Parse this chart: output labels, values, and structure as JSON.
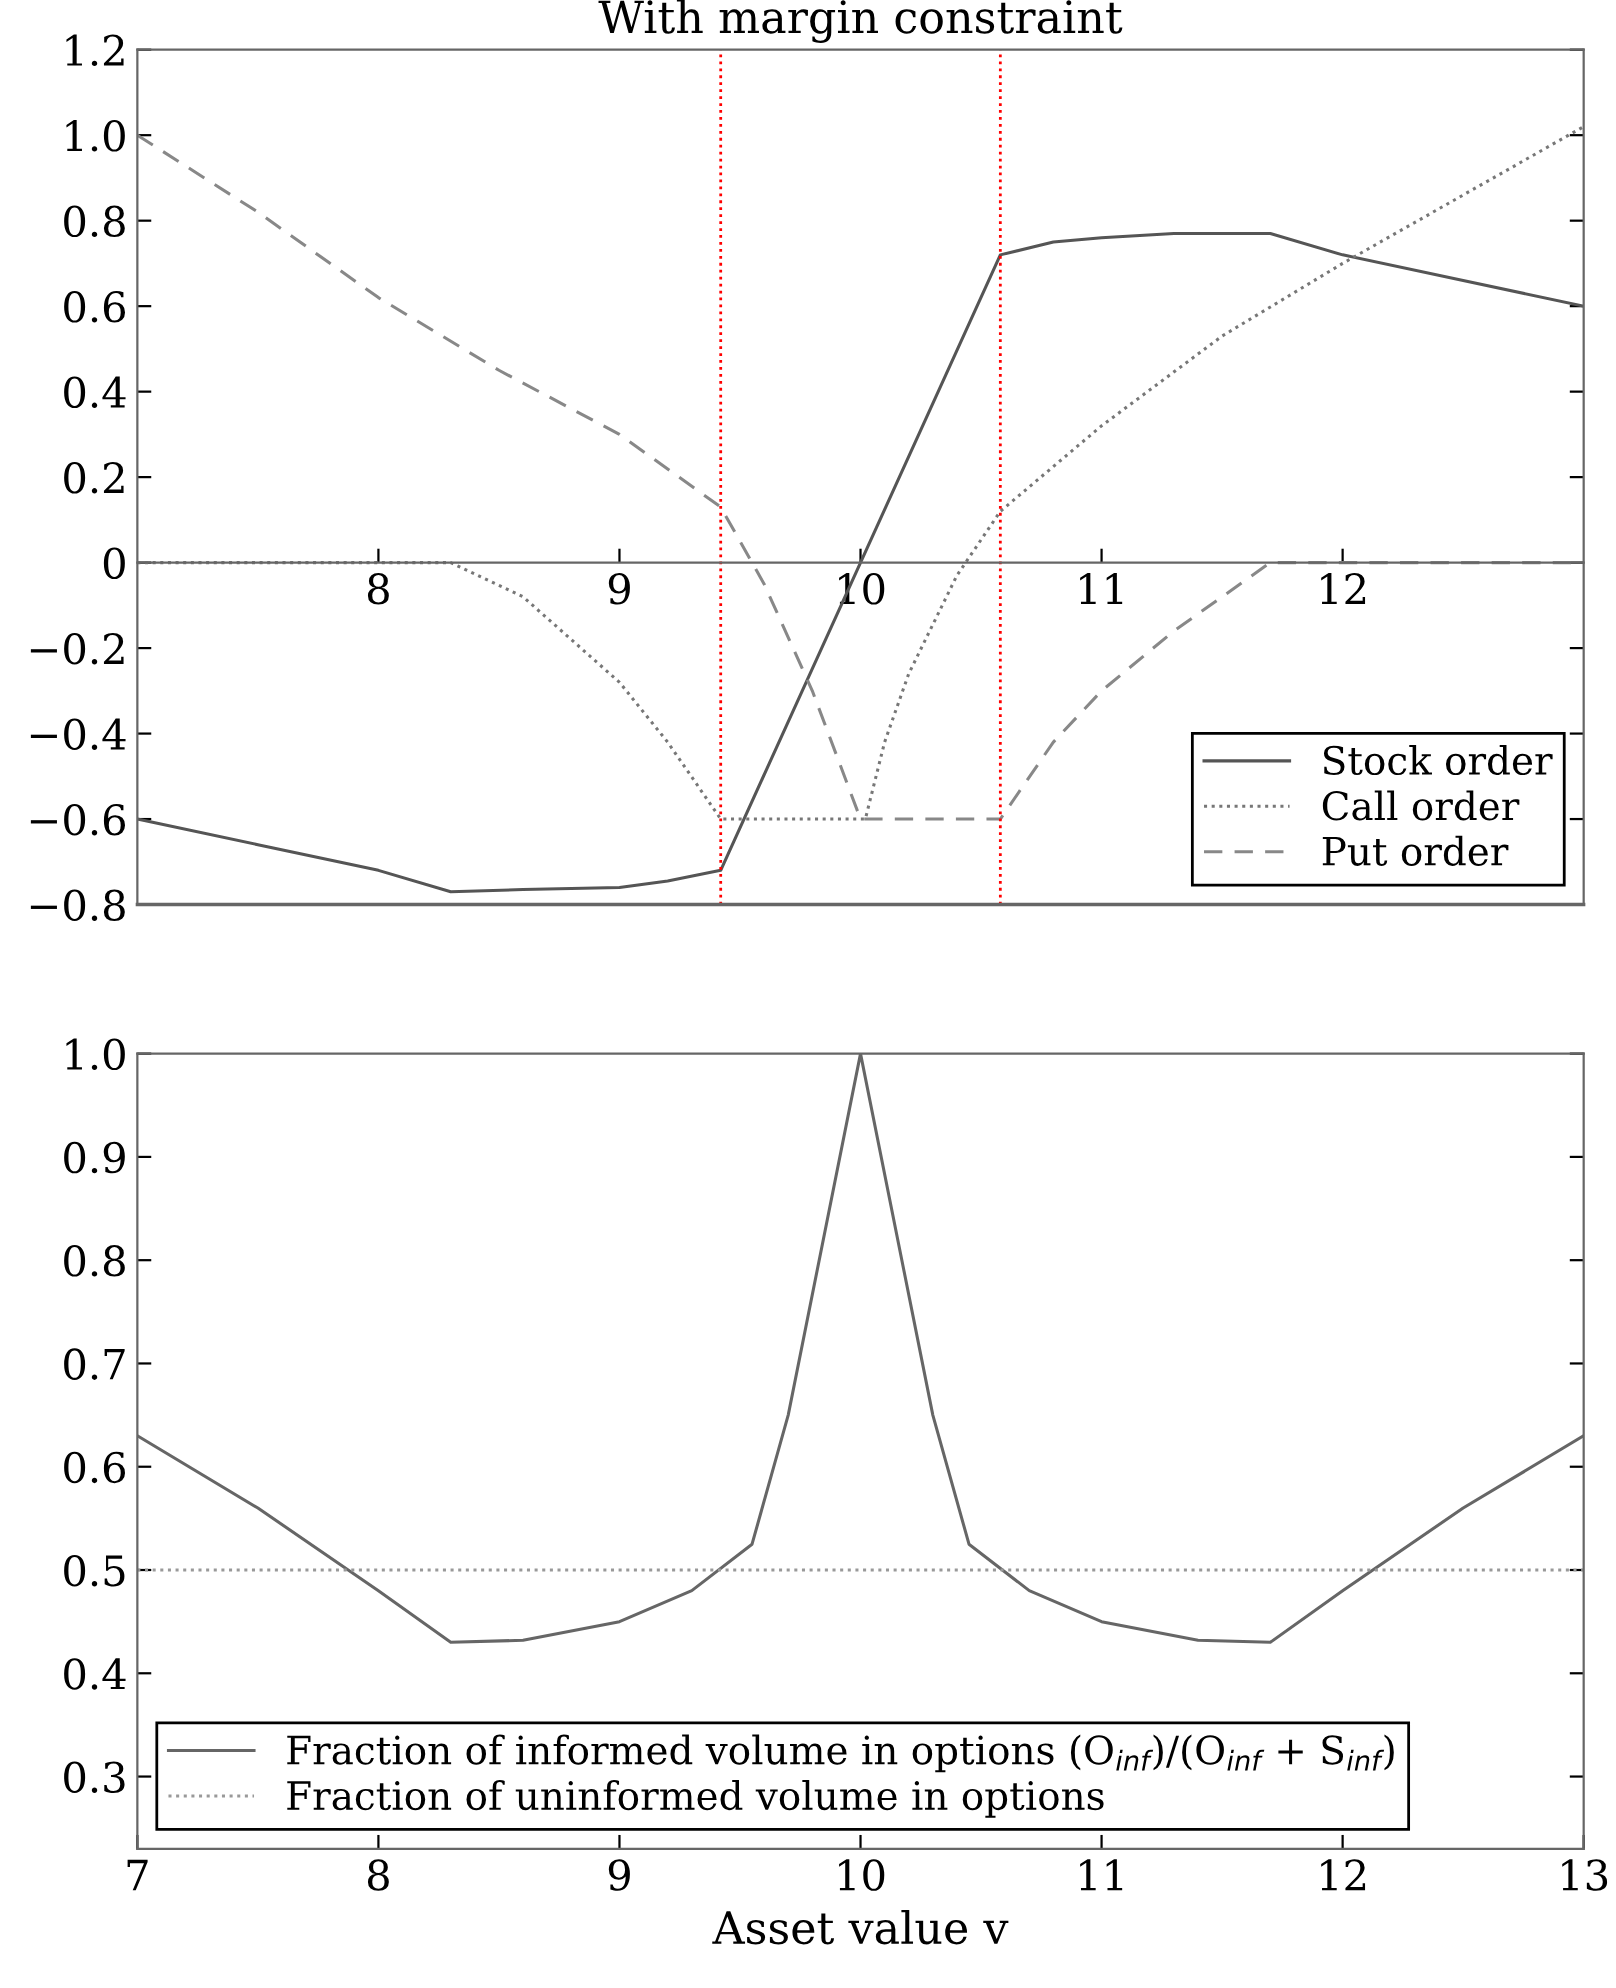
{
  "chart_data": [
    {
      "type": "line",
      "title": "With margin constraint",
      "xlim": [
        7,
        13
      ],
      "xticks": [
        8,
        9,
        10,
        11,
        12
      ],
      "ylim": [
        -0.8,
        1.2
      ],
      "yticks": [
        {
          "value": 1.2,
          "label": "1.2"
        },
        {
          "value": 1.0,
          "label": "1.0"
        },
        {
          "value": 0.8,
          "label": "0.8"
        },
        {
          "value": 0.6,
          "label": "0.6"
        },
        {
          "value": 0.4,
          "label": "0.4"
        },
        {
          "value": 0.2,
          "label": "0.2"
        },
        0,
        {
          "value": -0.2,
          "label": "−0.2"
        },
        {
          "value": -0.4,
          "label": "−0.4"
        },
        {
          "value": -0.6,
          "label": "−0.6"
        },
        {
          "value": -0.8,
          "label": "−0.8"
        }
      ],
      "grid": false,
      "legend": "bottom right",
      "marker": "none",
      "series": [
        {
          "name": "Stock order",
          "color": "#555555",
          "line_style": "solid",
          "x": [
            7,
            7.5,
            8,
            8.3,
            8.6,
            9,
            9.2,
            9.42,
            10,
            10.58,
            10.8,
            11,
            11.3,
            11.7,
            12,
            12.5,
            13
          ],
          "values": [
            -0.6,
            -0.66,
            -0.72,
            -0.77,
            -0.765,
            -0.76,
            -0.745,
            -0.72,
            0,
            0.72,
            0.75,
            0.76,
            0.77,
            0.77,
            0.72,
            0.66,
            0.6
          ]
        },
        {
          "name": "Call order",
          "color": "#777777",
          "line_style": "dotted",
          "x": [
            7,
            8.3,
            8.6,
            9,
            9.2,
            9.42,
            10,
            10.02,
            10.1,
            10.2,
            10.4,
            10.58,
            11,
            11.5,
            12,
            12.5,
            13
          ],
          "values": [
            0,
            0,
            -0.08,
            -0.28,
            -0.42,
            -0.6,
            -0.6,
            -0.6,
            -0.42,
            -0.26,
            -0.03,
            0.12,
            0.32,
            0.53,
            0.7,
            0.86,
            1.02
          ]
        },
        {
          "name": "Put order",
          "color": "#888888",
          "line_style": "dashed",
          "x": [
            7,
            7.5,
            8,
            8.5,
            9,
            9.42,
            9.6,
            9.8,
            10,
            10.58,
            10.8,
            11,
            11.3,
            11.7,
            13
          ],
          "values": [
            1.0,
            0.82,
            0.62,
            0.45,
            0.3,
            0.13,
            -0.05,
            -0.3,
            -0.6,
            -0.6,
            -0.42,
            -0.3,
            -0.16,
            0,
            0
          ]
        }
      ],
      "ref_lines": [
        {
          "axis": "x",
          "value": 9.42,
          "color": "#ff0000",
          "line_style": "dotted"
        },
        {
          "axis": "x",
          "value": 10.58,
          "color": "#ff0000",
          "line_style": "dotted"
        }
      ]
    },
    {
      "type": "line",
      "xlabel": "Asset value v",
      "xlim": [
        7,
        13
      ],
      "xticks": [
        7,
        8,
        9,
        10,
        11,
        12,
        13
      ],
      "ylim": [
        0.23,
        1.0
      ],
      "yticks": [
        {
          "value": 0.3,
          "label": "0.3"
        },
        {
          "value": 0.4,
          "label": "0.4"
        },
        {
          "value": 0.5,
          "label": "0.5"
        },
        {
          "value": 0.6,
          "label": "0.6"
        },
        {
          "value": 0.7,
          "label": "0.7"
        },
        {
          "value": 0.8,
          "label": "0.8"
        },
        {
          "value": 0.9,
          "label": "0.9"
        },
        {
          "value": 1.0,
          "label": "1.0"
        }
      ],
      "grid": false,
      "legend": "bottom left",
      "marker": "none",
      "series": [
        {
          "name": "Fraction of informed volume in options (O$_{inf}$)/(O$_{inf}$ + S$_{inf}$)",
          "color": "#666666",
          "line_style": "solid",
          "x": [
            7,
            7.5,
            8,
            8.3,
            8.6,
            9,
            9.3,
            9.55,
            9.7,
            10,
            10.3,
            10.45,
            10.7,
            11,
            11.4,
            11.7,
            12,
            12.5,
            13
          ],
          "values": [
            0.63,
            0.56,
            0.48,
            0.43,
            0.432,
            0.45,
            0.48,
            0.525,
            0.65,
            1.0,
            0.65,
            0.525,
            0.48,
            0.45,
            0.432,
            0.43,
            0.48,
            0.56,
            0.63
          ]
        },
        {
          "name": "Fraction of uninformed volume in options",
          "color": "#999999",
          "line_style": "dotted",
          "x": [
            7,
            13
          ],
          "values": [
            0.5,
            0.5
          ]
        }
      ]
    }
  ]
}
